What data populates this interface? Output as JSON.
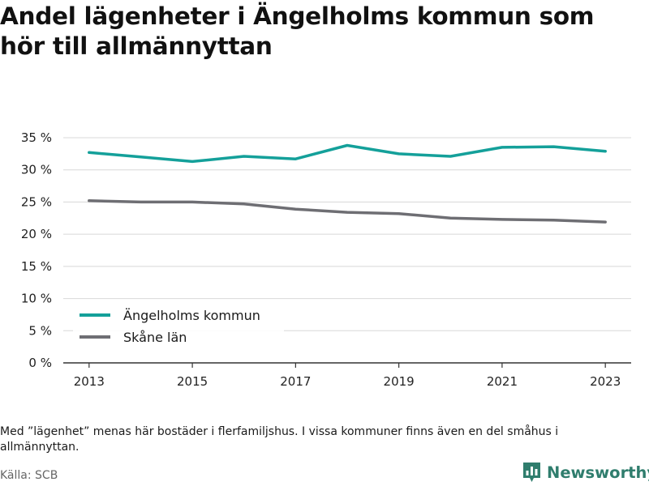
{
  "title": "Andel lägenheter i Ängelholms kommun som hör till allmännyttan",
  "note": "Med ”lägenhet” menas här bostäder i flerfamiljshus. I vissa kommuner finns även en del småhus i allmännyttan.",
  "source": "Källa: SCB",
  "brand": "Newsworthy",
  "colors": {
    "primary": "#14a09a",
    "secondary": "#6e6e73",
    "brand": "#2f7d6d",
    "grid": "#d8d8d8"
  },
  "chart_data": {
    "type": "line",
    "x": [
      2013,
      2014,
      2015,
      2016,
      2017,
      2018,
      2019,
      2020,
      2021,
      2022,
      2023
    ],
    "xticks": [
      "2013",
      "2015",
      "2017",
      "2019",
      "2021",
      "2023"
    ],
    "yticks": [
      "0 %",
      "5 %",
      "10 %",
      "15 %",
      "20 %",
      "25 %",
      "30 %",
      "35 %"
    ],
    "ylim": [
      0,
      35
    ],
    "grid": true,
    "legend_position": "bottom-left",
    "series": [
      {
        "name": "Ängelholms kommun",
        "color": "#14a09a",
        "values": [
          32.7,
          32.0,
          31.3,
          32.1,
          31.7,
          33.8,
          32.5,
          32.1,
          33.5,
          33.6,
          32.9
        ]
      },
      {
        "name": "Skåne län",
        "color": "#6e6e73",
        "values": [
          25.2,
          25.0,
          25.0,
          24.7,
          23.9,
          23.4,
          23.2,
          22.5,
          22.3,
          22.2,
          21.9
        ]
      }
    ]
  }
}
